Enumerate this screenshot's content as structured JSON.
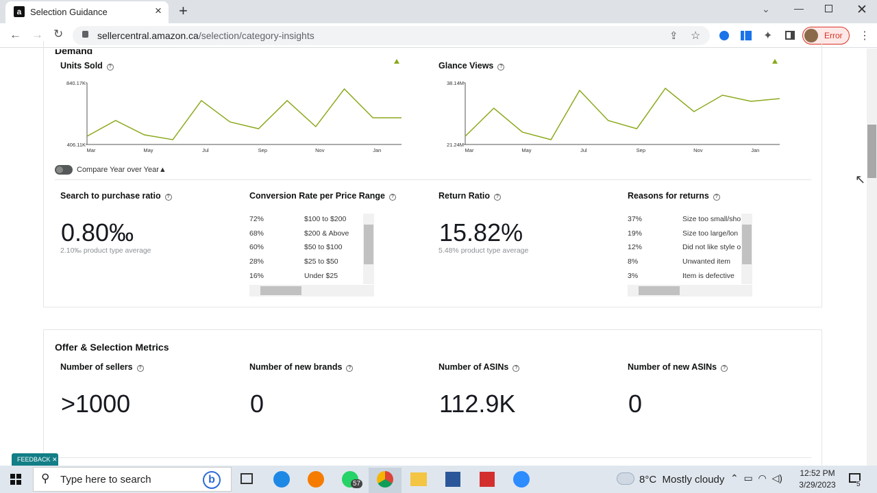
{
  "browser": {
    "tab_title": "Selection Guidance",
    "url_host": "sellercentral.amazon.ca",
    "url_path": "/selection/category-insights",
    "profile_status": "Error"
  },
  "demand": {
    "heading": "Demand",
    "units_sold": {
      "type": "line",
      "title": "Units Sold",
      "categories": [
        "Mar",
        null,
        "May",
        null,
        "Jul",
        null,
        "Sep",
        null,
        "Nov",
        null,
        "Jan",
        null
      ],
      "values": [
        464000,
        575000,
        474000,
        440000,
        715000,
        565000,
        517000,
        715000,
        532000,
        797000,
        594000,
        594000
      ],
      "ylim": [
        406110,
        840170
      ],
      "yticks": [
        {
          "value": 406110,
          "label": "406.11K"
        },
        {
          "value": 840170,
          "label": "840.17K"
        }
      ],
      "color": "#8aa91c"
    },
    "glance_views": {
      "type": "line",
      "title": "Glance Views",
      "categories": [
        "Mar",
        null,
        "May",
        null,
        "Jul",
        null,
        "Sep",
        null,
        "Nov",
        null,
        "Jan",
        null
      ],
      "values": [
        23490000,
        31190000,
        24620000,
        22550000,
        36070000,
        27810000,
        25560000,
        36640000,
        30250000,
        34760000,
        33070000,
        33820000
      ],
      "ylim": [
        21240000,
        38140000
      ],
      "yticks": [
        {
          "value": 21240000,
          "label": "21.24M"
        },
        {
          "value": 38140000,
          "label": "38.14M"
        }
      ],
      "color": "#8aa91c"
    },
    "compare_toggle": "Compare Year over Year",
    "search_to_purchase": {
      "title": "Search to purchase ratio",
      "value": "0.80‰",
      "average": "2.10‰ product type average"
    },
    "conversion_rate": {
      "title": "Conversion Rate per Price Range",
      "rows": [
        [
          "72%",
          "$100 to $200"
        ],
        [
          "68%",
          "$200 & Above"
        ],
        [
          "60%",
          "$50 to $100"
        ],
        [
          "28%",
          "$25 to $50"
        ],
        [
          "16%",
          "Under $25"
        ]
      ]
    },
    "return_ratio": {
      "title": "Return Ratio",
      "value": "15.82%",
      "average": "5.48% product type average"
    },
    "reasons": {
      "title": "Reasons for returns",
      "rows": [
        [
          "37%",
          "Size too small/sho"
        ],
        [
          "19%",
          "Size too large/lon"
        ],
        [
          "12%",
          "Did not like style o"
        ],
        [
          "8%",
          "Unwanted item"
        ],
        [
          "3%",
          "Item is defective"
        ]
      ]
    }
  },
  "offer": {
    "heading": "Offer & Selection Metrics",
    "metrics": [
      {
        "title": "Number of sellers",
        "value": ">1000"
      },
      {
        "title": "Number of new brands",
        "value": "0"
      },
      {
        "title": "Number of ASINs",
        "value": "112.9K"
      },
      {
        "title": "Number of new ASINs",
        "value": "0"
      }
    ]
  },
  "feedback": "FEEDBACK",
  "taskbar": {
    "search": "Type here to search",
    "whatsapp_badge": "57",
    "weather_temp": "8°C",
    "weather_text": "Mostly cloudy",
    "time": "12:52 PM",
    "date": "3/29/2023",
    "notifications": "5"
  }
}
